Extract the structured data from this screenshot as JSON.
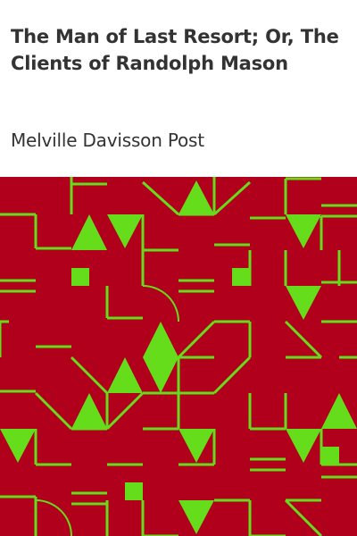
{
  "book": {
    "title": "The Man of Last Resort; Or, The Clients of Randolph Mason",
    "author": "Melville Davisson Post"
  },
  "colors": {
    "background": "#ffffff",
    "text": "#333333",
    "pattern_background": "#b0001c",
    "pattern_foreground": "#66dd1a"
  }
}
